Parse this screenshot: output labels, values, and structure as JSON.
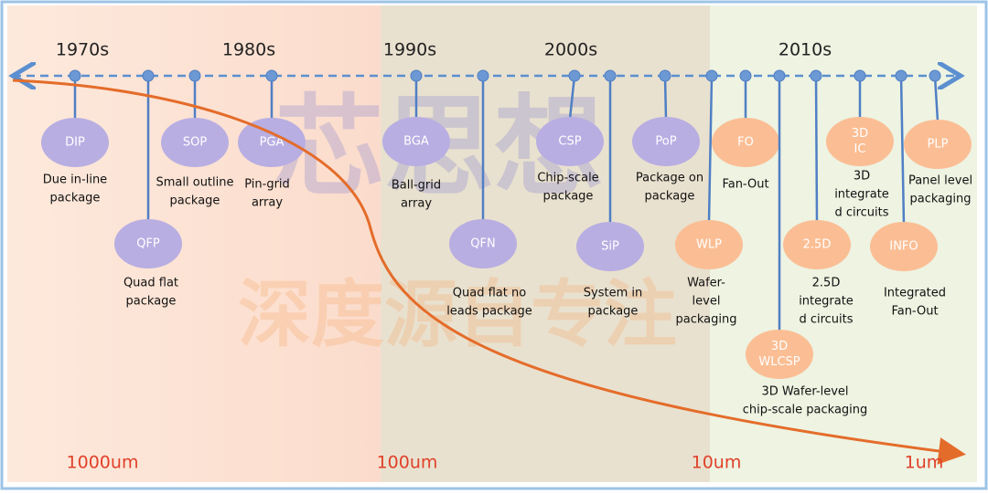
{
  "eras": [
    "1970s",
    "1980s",
    "1990s",
    "2000s",
    "2010s"
  ],
  "sizes": [
    "1000um",
    "100um",
    "10um",
    "1um"
  ],
  "watermark": [
    "芯思想",
    "深度源自专注"
  ],
  "packages": [
    {
      "label": [
        "DIP"
      ],
      "description": [
        "Due in-line",
        "package"
      ]
    },
    {
      "label": [
        "QFP"
      ],
      "description": [
        "Quad flat",
        "package"
      ]
    },
    {
      "label": [
        "SOP"
      ],
      "description": [
        "Small outline",
        "package"
      ]
    },
    {
      "label": [
        "PGA"
      ],
      "description": [
        "Pin-grid",
        "array"
      ]
    },
    {
      "label": [
        "BGA"
      ],
      "description": [
        "Ball-grid",
        "array"
      ]
    },
    {
      "label": [
        "QFN"
      ],
      "description": [
        "Quad flat no",
        "leads  package"
      ]
    },
    {
      "label": [
        "CSP"
      ],
      "description": [
        "Chip-scale",
        "package"
      ]
    },
    {
      "label": [
        "SiP"
      ],
      "description": [
        "System in",
        "package"
      ]
    },
    {
      "label": [
        "PoP"
      ],
      "description": [
        "Package on",
        "package"
      ]
    },
    {
      "label": [
        "WLP"
      ],
      "description": [
        "Wafer-",
        "level",
        "packaging"
      ]
    },
    {
      "label": [
        "FO"
      ],
      "description": [
        "Fan-Out"
      ]
    },
    {
      "label": [
        "3D",
        "WLCSP"
      ],
      "description": [
        "3D Wafer-level",
        "chip-scale packaging"
      ]
    },
    {
      "label": [
        "2.5D"
      ],
      "description": [
        "2.5D",
        "integrate",
        "d circuits"
      ]
    },
    {
      "label": [
        "3D",
        "IC"
      ],
      "description": [
        "3D",
        "integrate",
        "d circuits"
      ]
    },
    {
      "label": [
        "INFO"
      ],
      "description": [
        "Integrated",
        "Fan-Out"
      ]
    },
    {
      "label": [
        "PLP"
      ],
      "description": [
        "Panel level",
        "packaging"
      ]
    }
  ]
}
